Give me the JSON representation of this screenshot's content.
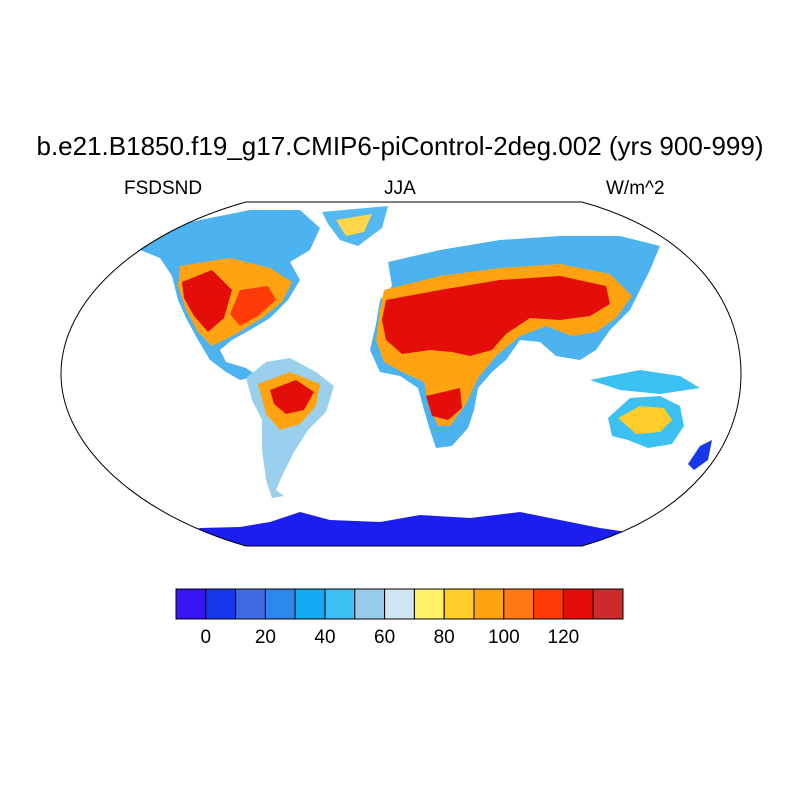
{
  "title": "b.e21.B1850.f19_g17.CMIP6-piControl-2deg.002 (yrs 900-999)",
  "left_label": "FSDSND",
  "center_label": "JJA",
  "right_label": "W/m^2",
  "projection": "Robinson",
  "colorbar": {
    "colors": [
      "#3b14f5",
      "#1738e8",
      "#3d6ae0",
      "#2d88ee",
      "#12aaf5",
      "#3dc0f2",
      "#96cbe9",
      "#cfe7f4",
      "#fff06a",
      "#ffcc2a",
      "#ffa311",
      "#ff7a12",
      "#ff3b0a",
      "#e40e08",
      "#cc2b2b"
    ],
    "tick_labels": [
      "0",
      "20",
      "40",
      "60",
      "80",
      "100",
      "120"
    ]
  }
}
